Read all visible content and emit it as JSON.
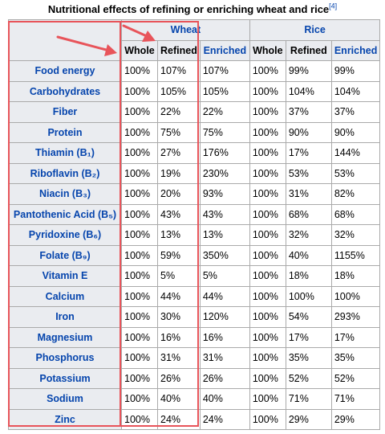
{
  "caption": {
    "text": "Nutritional effects of refining or enriching wheat and rice",
    "ref": "[4]"
  },
  "groups": [
    "Wheat",
    "Rice"
  ],
  "subheaders": [
    "Whole",
    "Refined",
    "Enriched",
    "Whole",
    "Refined",
    "Enriched"
  ],
  "rows": [
    {
      "name": "Food energy",
      "values": [
        "100%",
        "107%",
        "107%",
        "100%",
        "99%",
        "99%"
      ]
    },
    {
      "name": "Carbohydrates",
      "values": [
        "100%",
        "105%",
        "105%",
        "100%",
        "104%",
        "104%"
      ]
    },
    {
      "name": "Fiber",
      "values": [
        "100%",
        "22%",
        "22%",
        "100%",
        "37%",
        "37%"
      ]
    },
    {
      "name": "Protein",
      "values": [
        "100%",
        "75%",
        "75%",
        "100%",
        "90%",
        "90%"
      ]
    },
    {
      "name": "Thiamin (B₁)",
      "values": [
        "100%",
        "27%",
        "176%",
        "100%",
        "17%",
        "144%"
      ]
    },
    {
      "name": "Riboflavin (B₂)",
      "values": [
        "100%",
        "19%",
        "230%",
        "100%",
        "53%",
        "53%"
      ]
    },
    {
      "name": "Niacin (B₃)",
      "values": [
        "100%",
        "20%",
        "93%",
        "100%",
        "31%",
        "82%"
      ]
    },
    {
      "name": "Pantothenic Acid (B₅)",
      "values": [
        "100%",
        "43%",
        "43%",
        "100%",
        "68%",
        "68%"
      ]
    },
    {
      "name": "Pyridoxine (B₆)",
      "values": [
        "100%",
        "13%",
        "13%",
        "100%",
        "32%",
        "32%"
      ]
    },
    {
      "name": "Folate (B₉)",
      "values": [
        "100%",
        "59%",
        "350%",
        "100%",
        "40%",
        "1155%"
      ]
    },
    {
      "name": "Vitamin E",
      "values": [
        "100%",
        "5%",
        "5%",
        "100%",
        "18%",
        "18%"
      ]
    },
    {
      "name": "Calcium",
      "values": [
        "100%",
        "44%",
        "44%",
        "100%",
        "100%",
        "100%"
      ]
    },
    {
      "name": "Iron",
      "values": [
        "100%",
        "30%",
        "120%",
        "100%",
        "54%",
        "293%"
      ]
    },
    {
      "name": "Magnesium",
      "values": [
        "100%",
        "16%",
        "16%",
        "100%",
        "17%",
        "17%"
      ]
    },
    {
      "name": "Phosphorus",
      "values": [
        "100%",
        "31%",
        "31%",
        "100%",
        "35%",
        "35%"
      ]
    },
    {
      "name": "Potassium",
      "values": [
        "100%",
        "26%",
        "26%",
        "100%",
        "52%",
        "52%"
      ]
    },
    {
      "name": "Sodium",
      "values": [
        "100%",
        "40%",
        "40%",
        "100%",
        "71%",
        "71%"
      ]
    },
    {
      "name": "Zinc",
      "values": [
        "100%",
        "24%",
        "24%",
        "100%",
        "29%",
        "29%"
      ]
    }
  ],
  "colors": {
    "link": "#0645ad",
    "header_bg": "#eaecf0",
    "highlight": "#e8545a"
  }
}
